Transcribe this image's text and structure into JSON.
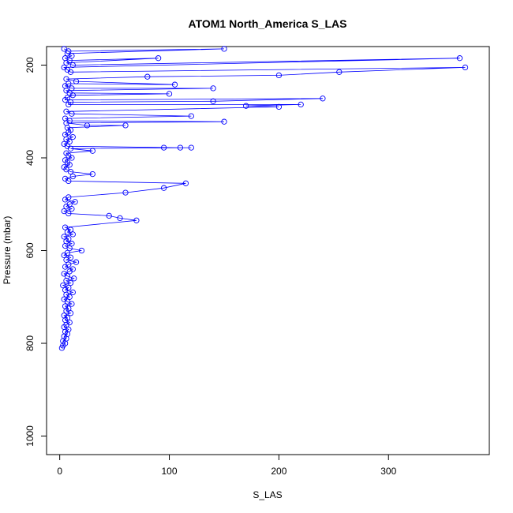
{
  "chart_data": {
    "type": "scatter",
    "title": "ATOM1 North_America S_LAS",
    "xlabel": "S_LAS",
    "ylabel": "Pressure (mbar)",
    "xlim": [
      -12,
      392
    ],
    "ylim": [
      1040,
      160
    ],
    "y_reversed": true,
    "xticks": [
      0,
      100,
      200,
      300
    ],
    "yticks": [
      200,
      400,
      600,
      800,
      1000
    ],
    "grid": false,
    "legend": "none",
    "marker": "open-circle",
    "connect_points": true,
    "color": "#0000ff",
    "series": [
      {
        "points": [
          [
            2,
            810
          ],
          [
            3,
            805
          ],
          [
            5,
            800
          ],
          [
            3,
            795
          ],
          [
            6,
            790
          ],
          [
            4,
            785
          ],
          [
            7,
            780
          ],
          [
            5,
            775
          ],
          [
            8,
            770
          ],
          [
            4,
            765
          ],
          [
            6,
            760
          ],
          [
            9,
            755
          ],
          [
            5,
            750
          ],
          [
            7,
            745
          ],
          [
            4,
            740
          ],
          [
            10,
            735
          ],
          [
            6,
            730
          ],
          [
            8,
            725
          ],
          [
            5,
            720
          ],
          [
            11,
            715
          ],
          [
            7,
            710
          ],
          [
            4,
            705
          ],
          [
            9,
            700
          ],
          [
            6,
            695
          ],
          [
            12,
            690
          ],
          [
            5,
            685
          ],
          [
            8,
            680
          ],
          [
            3,
            675
          ],
          [
            10,
            670
          ],
          [
            6,
            665
          ],
          [
            13,
            660
          ],
          [
            7,
            655
          ],
          [
            4,
            650
          ],
          [
            9,
            645
          ],
          [
            12,
            640
          ],
          [
            5,
            635
          ],
          [
            8,
            630
          ],
          [
            15,
            625
          ],
          [
            6,
            620
          ],
          [
            10,
            615
          ],
          [
            4,
            610
          ],
          [
            7,
            605
          ],
          [
            20,
            600
          ],
          [
            9,
            595
          ],
          [
            5,
            590
          ],
          [
            11,
            585
          ],
          [
            6,
            580
          ],
          [
            8,
            575
          ],
          [
            4,
            570
          ],
          [
            12,
            565
          ],
          [
            7,
            560
          ],
          [
            10,
            555
          ],
          [
            5,
            550
          ],
          [
            70,
            535
          ],
          [
            55,
            530
          ],
          [
            45,
            525
          ],
          [
            8,
            520
          ],
          [
            4,
            515
          ],
          [
            11,
            510
          ],
          [
            6,
            505
          ],
          [
            9,
            500
          ],
          [
            14,
            495
          ],
          [
            5,
            490
          ],
          [
            8,
            485
          ],
          [
            60,
            475
          ],
          [
            95,
            465
          ],
          [
            115,
            455
          ],
          [
            8,
            450
          ],
          [
            5,
            445
          ],
          [
            12,
            440
          ],
          [
            30,
            435
          ],
          [
            10,
            430
          ],
          [
            6,
            425
          ],
          [
            4,
            420
          ],
          [
            9,
            415
          ],
          [
            7,
            410
          ],
          [
            5,
            405
          ],
          [
            11,
            400
          ],
          [
            8,
            395
          ],
          [
            6,
            390
          ],
          [
            30,
            385
          ],
          [
            10,
            380
          ],
          [
            120,
            378
          ],
          [
            95,
            378
          ],
          [
            110,
            378
          ],
          [
            7,
            375
          ],
          [
            4,
            370
          ],
          [
            9,
            365
          ],
          [
            6,
            360
          ],
          [
            12,
            355
          ],
          [
            5,
            350
          ],
          [
            8,
            345
          ],
          [
            10,
            340
          ],
          [
            7,
            335
          ],
          [
            60,
            330
          ],
          [
            25,
            330
          ],
          [
            6,
            325
          ],
          [
            150,
            322
          ],
          [
            9,
            320
          ],
          [
            5,
            315
          ],
          [
            120,
            310
          ],
          [
            11,
            305
          ],
          [
            6,
            300
          ],
          [
            200,
            290
          ],
          [
            170,
            288
          ],
          [
            220,
            285
          ],
          [
            8,
            285
          ],
          [
            10,
            280
          ],
          [
            140,
            278
          ],
          [
            240,
            272
          ],
          [
            5,
            275
          ],
          [
            7,
            270
          ],
          [
            12,
            265
          ],
          [
            100,
            262
          ],
          [
            9,
            260
          ],
          [
            6,
            255
          ],
          [
            140,
            250
          ],
          [
            11,
            250
          ],
          [
            5,
            245
          ],
          [
            8,
            240
          ],
          [
            105,
            242
          ],
          [
            15,
            235
          ],
          [
            6,
            230
          ],
          [
            80,
            225
          ],
          [
            200,
            222
          ],
          [
            255,
            215
          ],
          [
            370,
            205
          ],
          [
            10,
            215
          ],
          [
            7,
            210
          ],
          [
            4,
            205
          ],
          [
            365,
            185
          ],
          [
            12,
            200
          ],
          [
            6,
            195
          ],
          [
            90,
            185
          ],
          [
            9,
            190
          ],
          [
            5,
            185
          ],
          [
            11,
            180
          ],
          [
            7,
            175
          ],
          [
            150,
            165
          ],
          [
            8,
            170
          ],
          [
            4,
            165
          ]
        ]
      }
    ]
  }
}
